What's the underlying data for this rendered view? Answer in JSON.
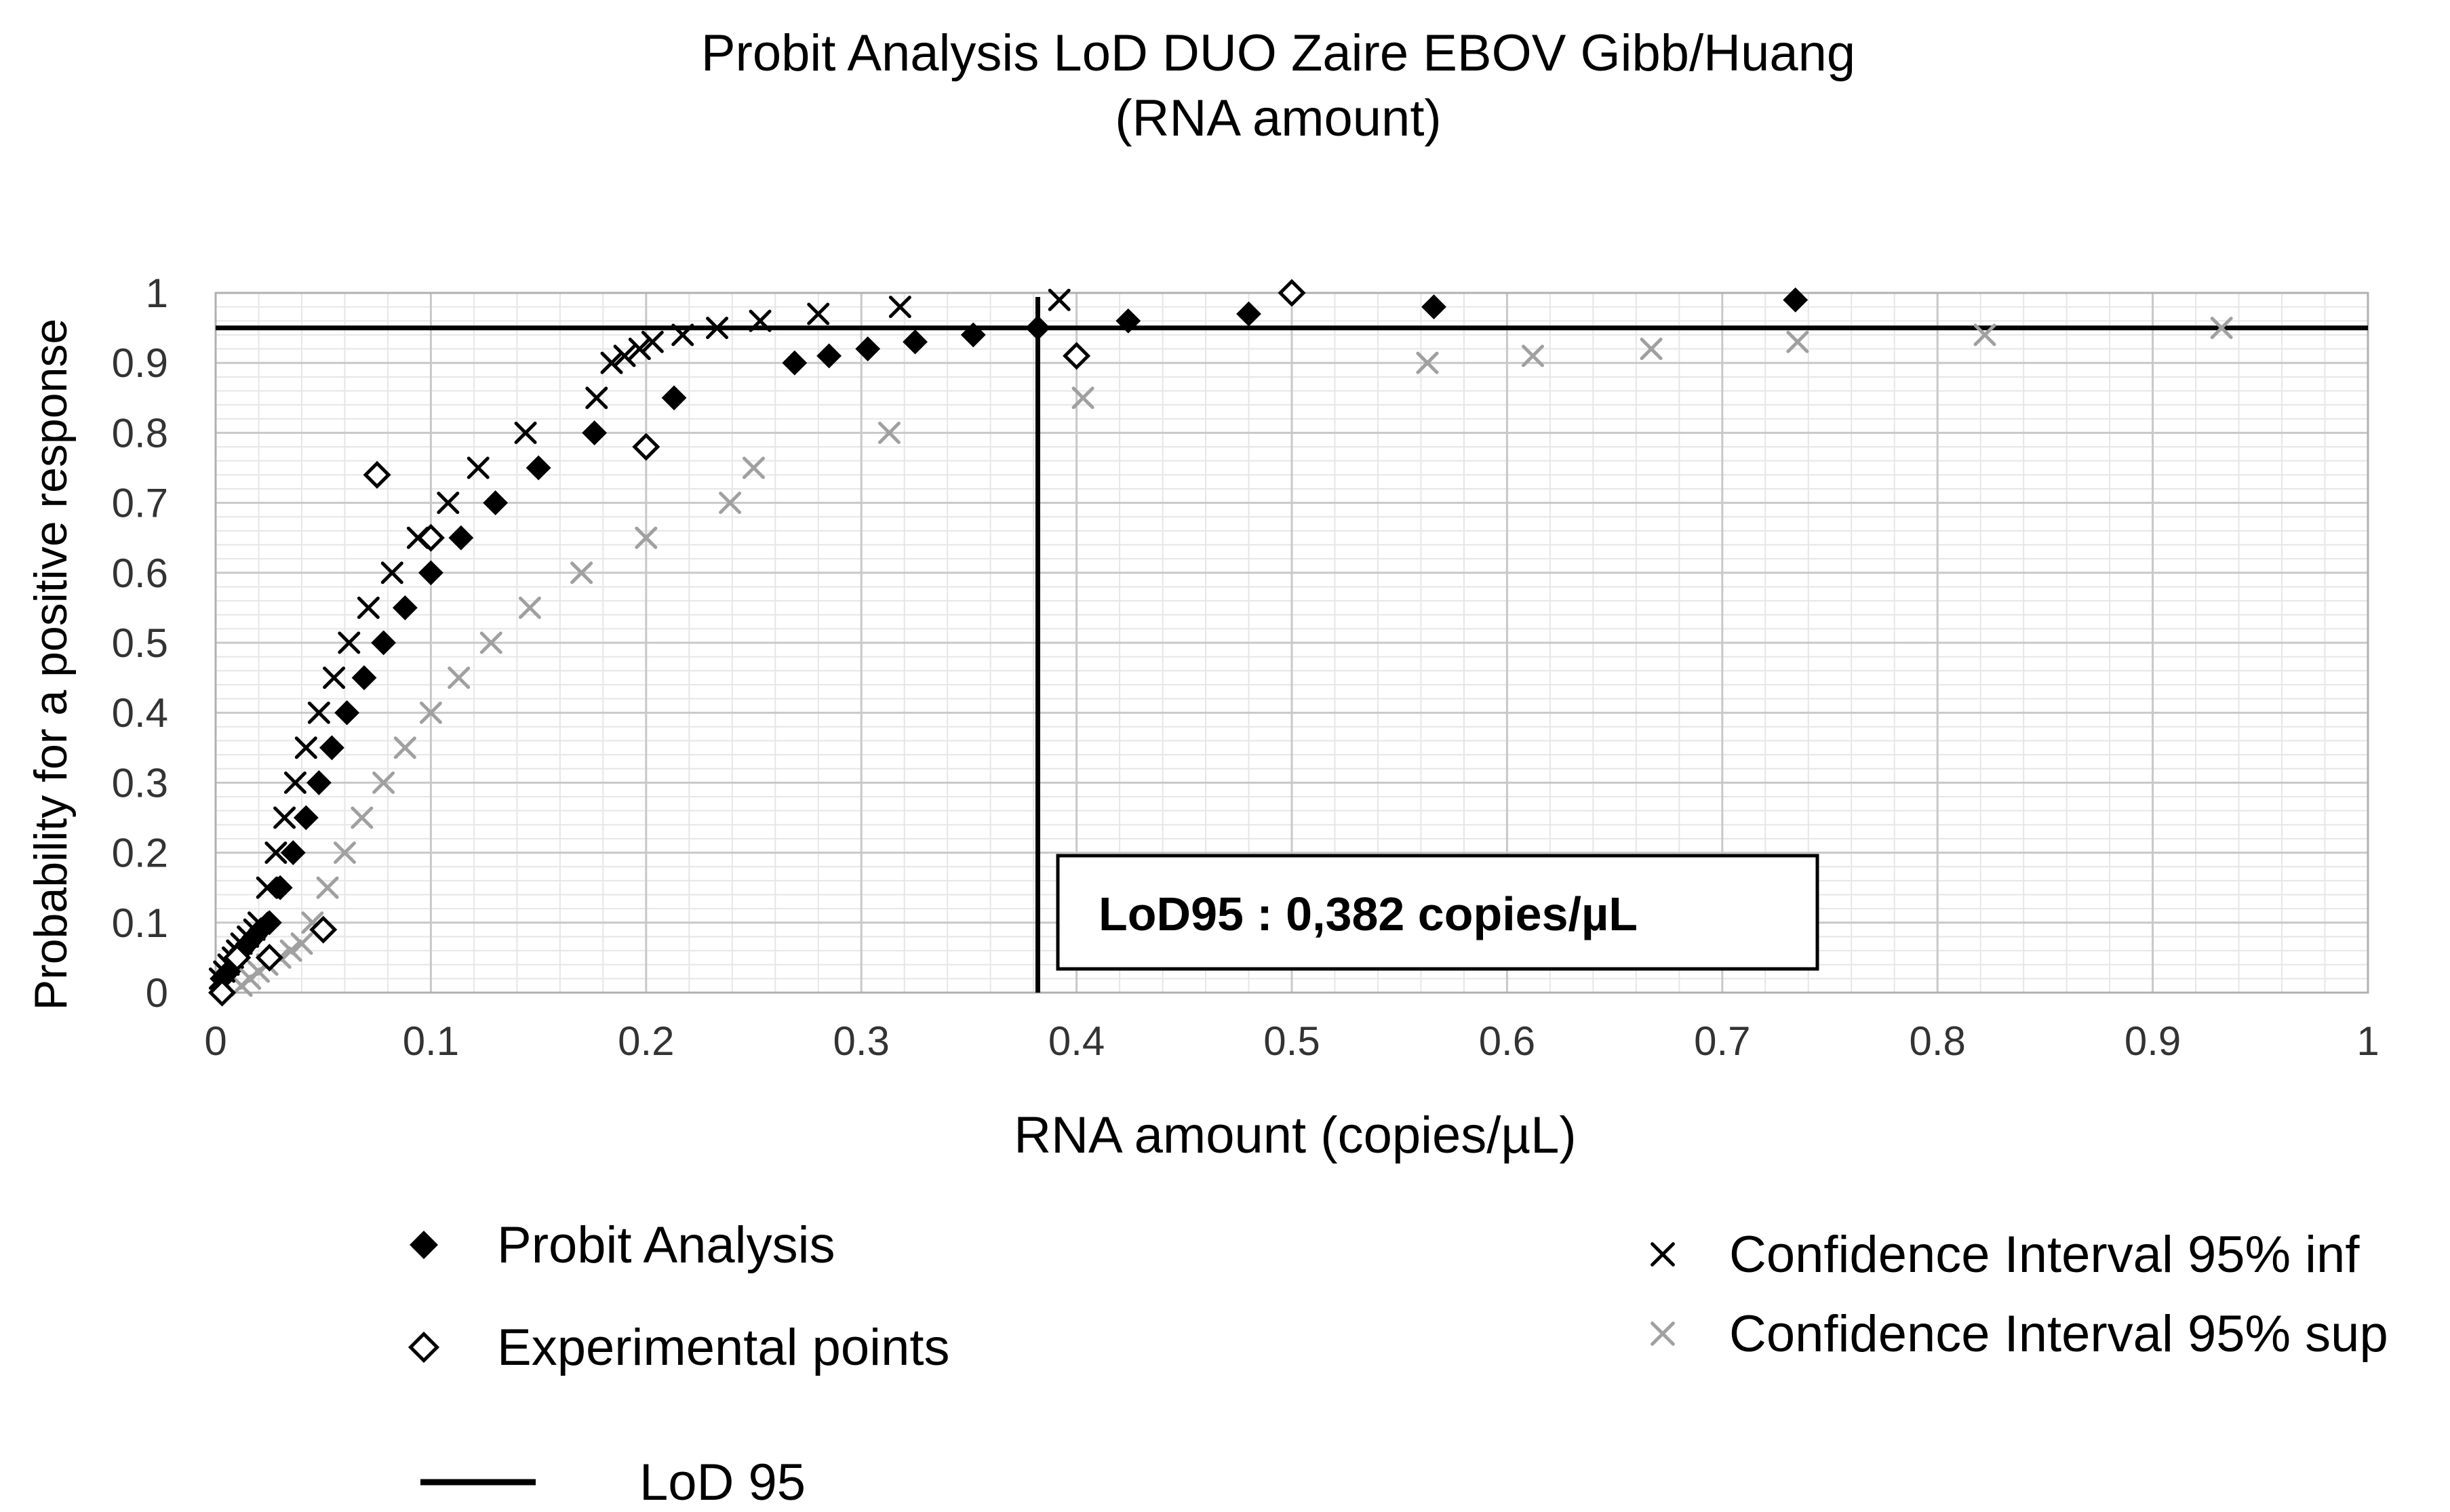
{
  "chart_data": {
    "type": "scatter",
    "title": "Probit Analysis  LoD DUO Zaire EBOV  Gibb/Huang",
    "subtitle": "(RNA amount)",
    "xlabel": "RNA amount  (copies/µL)",
    "ylabel": "Probability for a positive response",
    "xlim": [
      0,
      1
    ],
    "ylim": [
      0,
      1
    ],
    "x_ticks": [
      0,
      0.1,
      0.2,
      0.3,
      0.4,
      0.5,
      0.6,
      0.7,
      0.8,
      0.9,
      1
    ],
    "x_tick_labels": [
      "0",
      "0.1",
      "0.2",
      "0.3",
      "0.4",
      "0.5",
      "0.6",
      "0.7",
      "0.8",
      "0.9",
      "1"
    ],
    "y_ticks": [
      0,
      0.1,
      0.2,
      0.3,
      0.4,
      0.5,
      0.6,
      0.7,
      0.8,
      0.9,
      1
    ],
    "y_tick_labels": [
      "0",
      "0.1",
      "0.2",
      "0.3",
      "0.4",
      "0.5",
      "0.6",
      "0.7",
      "0.8",
      "0.9",
      "1"
    ],
    "grid": true,
    "series": [
      {
        "name": "Probit Analysis",
        "marker": "filled-diamond",
        "color": "#000000",
        "x": [
          0.003,
          0.006,
          0.009,
          0.012,
          0.015,
          0.018,
          0.021,
          0.025,
          0.03,
          0.036,
          0.042,
          0.048,
          0.054,
          0.061,
          0.069,
          0.078,
          0.088,
          0.1,
          0.114,
          0.13,
          0.15,
          0.176,
          0.213,
          0.269,
          0.285,
          0.303,
          0.325,
          0.352,
          0.382,
          0.424,
          0.48,
          0.566,
          0.734
        ],
        "y": [
          0.02,
          0.03,
          0.045,
          0.06,
          0.07,
          0.08,
          0.09,
          0.1,
          0.15,
          0.2,
          0.25,
          0.3,
          0.35,
          0.4,
          0.45,
          0.5,
          0.55,
          0.6,
          0.65,
          0.7,
          0.75,
          0.8,
          0.85,
          0.9,
          0.91,
          0.92,
          0.93,
          0.94,
          0.95,
          0.96,
          0.97,
          0.98,
          0.99
        ]
      },
      {
        "name": "Experimental points",
        "marker": "open-diamond",
        "color": "#000000",
        "x": [
          0.003,
          0.01,
          0.025,
          0.05,
          0.075,
          0.1,
          0.2,
          0.4,
          0.5
        ],
        "y": [
          0.0,
          0.05,
          0.05,
          0.09,
          0.74,
          0.65,
          0.78,
          0.91,
          1.0
        ]
      },
      {
        "name": "Confidence Interval 95% inf",
        "marker": "cross",
        "color": "#000000",
        "x": [
          0.002,
          0.004,
          0.006,
          0.008,
          0.01,
          0.012,
          0.015,
          0.018,
          0.02,
          0.024,
          0.028,
          0.032,
          0.037,
          0.042,
          0.048,
          0.055,
          0.062,
          0.071,
          0.082,
          0.094,
          0.108,
          0.122,
          0.144,
          0.177,
          0.184,
          0.19,
          0.197,
          0.203,
          0.217,
          0.233,
          0.253,
          0.28,
          0.318,
          0.392
        ],
        "y": [
          0.02,
          0.03,
          0.04,
          0.05,
          0.06,
          0.07,
          0.08,
          0.09,
          0.1,
          0.15,
          0.2,
          0.25,
          0.3,
          0.35,
          0.4,
          0.45,
          0.5,
          0.55,
          0.6,
          0.65,
          0.7,
          0.75,
          0.8,
          0.85,
          0.9,
          0.91,
          0.92,
          0.93,
          0.94,
          0.95,
          0.96,
          0.97,
          0.98,
          0.99
        ]
      },
      {
        "name": "Confidence Interval 95% sup",
        "marker": "cross",
        "color": "#a0a0a0",
        "x": [
          0.012,
          0.016,
          0.02,
          0.024,
          0.03,
          0.035,
          0.04,
          0.045,
          0.052,
          0.06,
          0.068,
          0.078,
          0.088,
          0.1,
          0.113,
          0.128,
          0.146,
          0.17,
          0.2,
          0.239,
          0.25,
          0.313,
          0.403,
          0.563,
          0.612,
          0.667,
          0.735,
          0.822,
          0.932
        ],
        "y": [
          0.01,
          0.02,
          0.03,
          0.04,
          0.05,
          0.06,
          0.07,
          0.1,
          0.15,
          0.2,
          0.25,
          0.3,
          0.35,
          0.4,
          0.45,
          0.5,
          0.55,
          0.6,
          0.65,
          0.7,
          0.75,
          0.8,
          0.85,
          0.9,
          0.91,
          0.92,
          0.93,
          0.94,
          0.95
        ]
      }
    ],
    "reference_lines": {
      "lod95_x": 0.382,
      "lod95_y": 0.95,
      "name": "LoD 95"
    },
    "annotation": "LoD95 : 0,382 copies/µL",
    "legend": {
      "placement": "bottom",
      "items": [
        {
          "label": "Probit Analysis",
          "marker": "filled-diamond",
          "color": "#000000"
        },
        {
          "label": "Experimental  points",
          "marker": "open-diamond",
          "color": "#000000"
        },
        {
          "label": "LoD 95",
          "marker": "line",
          "color": "#000000"
        },
        {
          "label": "Confidence  Interval  95% inf",
          "marker": "cross",
          "color": "#000000"
        },
        {
          "label": "Confidence  Interval  95% sup",
          "marker": "cross",
          "color": "#a0a0a0"
        }
      ]
    },
    "colors": {
      "grid_major": "#c8c8c8",
      "grid_minor": "#e6e6e6",
      "axis": "#b0b0b0",
      "ink": "#000000",
      "ci_sup": "#a0a0a0"
    }
  }
}
